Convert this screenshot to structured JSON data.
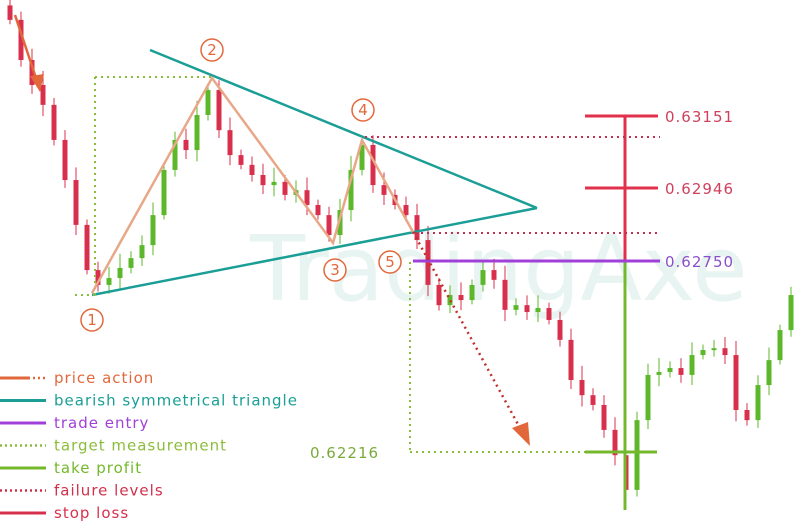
{
  "chart_data": {
    "type": "candlestick",
    "title": "",
    "watermark": "TradingAxe",
    "price_scale": {
      "top": 0.63472,
      "bottom": 0.62031
    },
    "closes": [
      0.63417,
      0.63306,
      0.63237,
      0.63182,
      0.63085,
      0.62974,
      0.6285,
      0.62725,
      0.62684,
      0.62703,
      0.62731,
      0.62758,
      0.62794,
      0.62877,
      0.63002,
      0.63085,
      0.63057,
      0.63154,
      0.63223,
      0.63112,
      0.63043,
      0.63016,
      0.62988,
      0.6296,
      0.62969,
      0.62933,
      0.62946,
      0.62905,
      0.62877,
      0.62822,
      0.62891,
      0.63002,
      0.63071,
      0.6296,
      0.62933,
      0.62905,
      0.62877,
      0.62808,
      0.62684,
      0.62628,
      0.62656,
      0.62642,
      0.62684,
      0.62725,
      0.62698,
      0.62615,
      0.62628,
      0.62609,
      0.6262,
      0.62587,
      0.62532,
      0.62421,
      0.62379,
      0.62352,
      0.62283,
      0.62213,
      0.62117,
      0.6231,
      0.62435,
      0.62443,
      0.62454,
      0.62435,
      0.6249,
      0.62504,
      0.62509,
      0.6249,
      0.62338,
      0.6231,
      0.62407,
      0.62476,
      0.62559,
      0.62656
    ],
    "levels": {
      "stop_loss_high": "0.63151",
      "stop_loss_mid": "0.62946",
      "trade_entry": "0.62750",
      "take_profit": "0.62216"
    },
    "pattern_points": [
      "1",
      "2",
      "3",
      "4",
      "5"
    ],
    "legend": [
      {
        "label": "price action",
        "color": "#e2683c",
        "style": "solid-dotted"
      },
      {
        "label": "bearish symmetrical triangle",
        "color": "#1a9e96",
        "style": "solid"
      },
      {
        "label": "trade entry",
        "color": "#a040d8",
        "style": "solid"
      },
      {
        "label": "target measurement",
        "color": "#8cbc3c",
        "style": "dotted"
      },
      {
        "label": "take profit",
        "color": "#74b82c",
        "style": "solid"
      },
      {
        "label": "failure levels",
        "color": "#d0304c",
        "style": "dotted"
      },
      {
        "label": "stop loss",
        "color": "#d8304c",
        "style": "solid"
      }
    ],
    "colors": {
      "up": "#5cb82a",
      "down": "#d8304c",
      "wick": "#c04060"
    },
    "legend_position": "bottom-left"
  }
}
